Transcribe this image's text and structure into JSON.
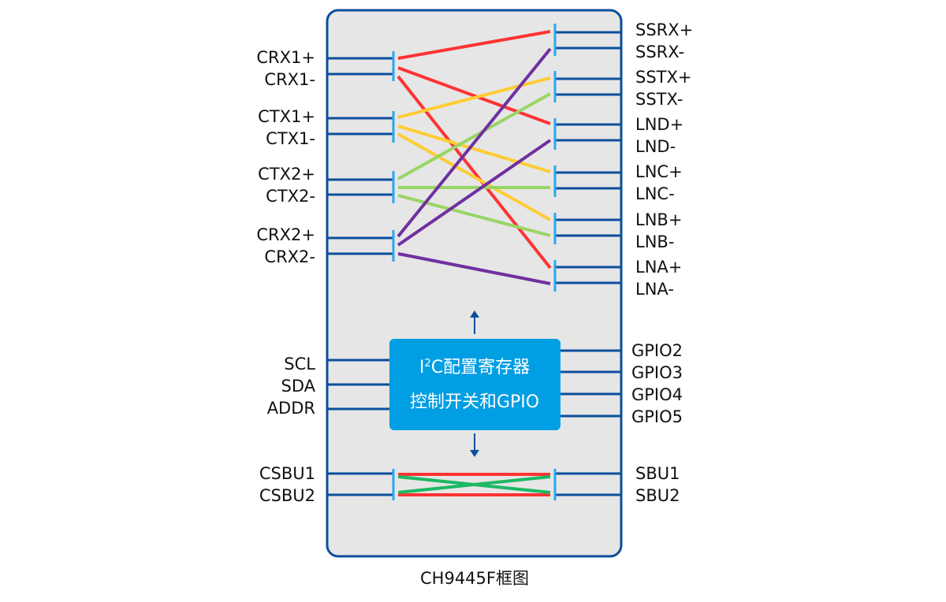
{
  "caption": "CH9445F框图",
  "left_pins": [
    "CRX1+",
    "CRX1-",
    "CTX1+",
    "CTX1-",
    "CTX2+",
    "CTX2-",
    "CRX2+",
    "CRX2-",
    "SCL",
    "SDA",
    "ADDR",
    "CSBU1",
    "CSBU2"
  ],
  "right_pins": [
    "SSRX+",
    "SSRX-",
    "SSTX+",
    "SSTX-",
    "LND+",
    "LND-",
    "LNC+",
    "LNC-",
    "LNB+",
    "LNB-",
    "LNA+",
    "LNA-",
    "GPIO2",
    "GPIO3",
    "GPIO4",
    "GPIO5",
    "SBU1",
    "SBU2"
  ],
  "control_block": {
    "line1_prefix": "I",
    "line1_sup": "2",
    "line1_rest": "C配置寄存器",
    "line2": "控制开关和GPIO"
  },
  "colors": {
    "frame": "#0b4f9c",
    "block": "#009ee3",
    "switch": "#2aa7f0",
    "background": "#e6e6e6",
    "red": "#ff3333",
    "yellow": "#ffcc33",
    "green": "#99d566",
    "purple": "#7030a0",
    "sbu_green": "#1db865"
  }
}
